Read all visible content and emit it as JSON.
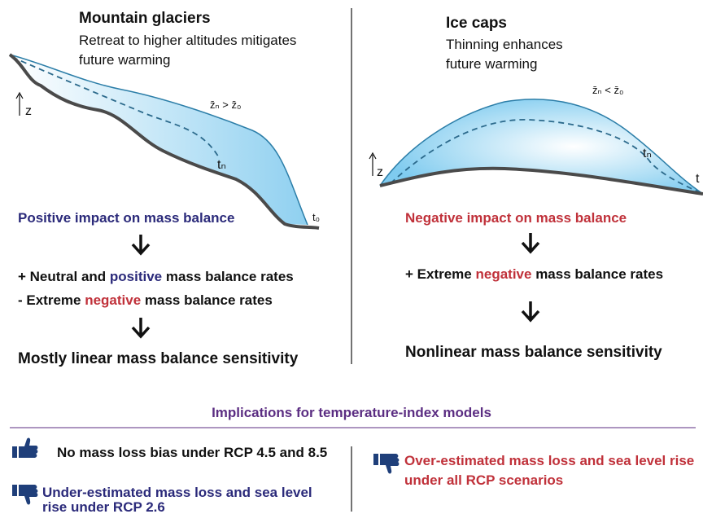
{
  "left": {
    "title": "Mountain glaciers",
    "subtitle": [
      "Retreat to higher altitudes mitigates",
      "future warming"
    ],
    "z_label": "z",
    "comparison": "z̄ₙ > z̄₀",
    "t_n": "tₙ",
    "t_0": "t₀",
    "impact": "Positive impact on mass balance",
    "rates": [
      [
        "+ Neutral and ",
        "positive",
        " mass balance rates"
      ],
      [
        "- Extreme ",
        "negative",
        " mass balance rates"
      ]
    ],
    "sensitivity": "Mostly linear mass balance sensitivity"
  },
  "right": {
    "title": "Ice caps",
    "subtitle": [
      "Thinning enhances",
      "future warming"
    ],
    "z_label": "z",
    "comparison": "z̄ₙ < z̄₀",
    "t_n": "tₙ",
    "t_0": "t",
    "impact": "Negative impact on mass balance",
    "rates": [
      [
        "+ Extreme ",
        "negative",
        " mass balance rates"
      ]
    ],
    "sensitivity": "Nonlinear mass balance sensitivity"
  },
  "implications": {
    "title": "Implications for temperature-index models",
    "items": [
      [
        "No mass loss bias under RCP 4.5 and 8.5"
      ],
      [
        "Under-estimated mass loss and sea level",
        "rise under RCP 2.6"
      ],
      [
        "Over-estimated mass loss and sea level rise",
        "under all RCP scenarios"
      ]
    ]
  }
}
